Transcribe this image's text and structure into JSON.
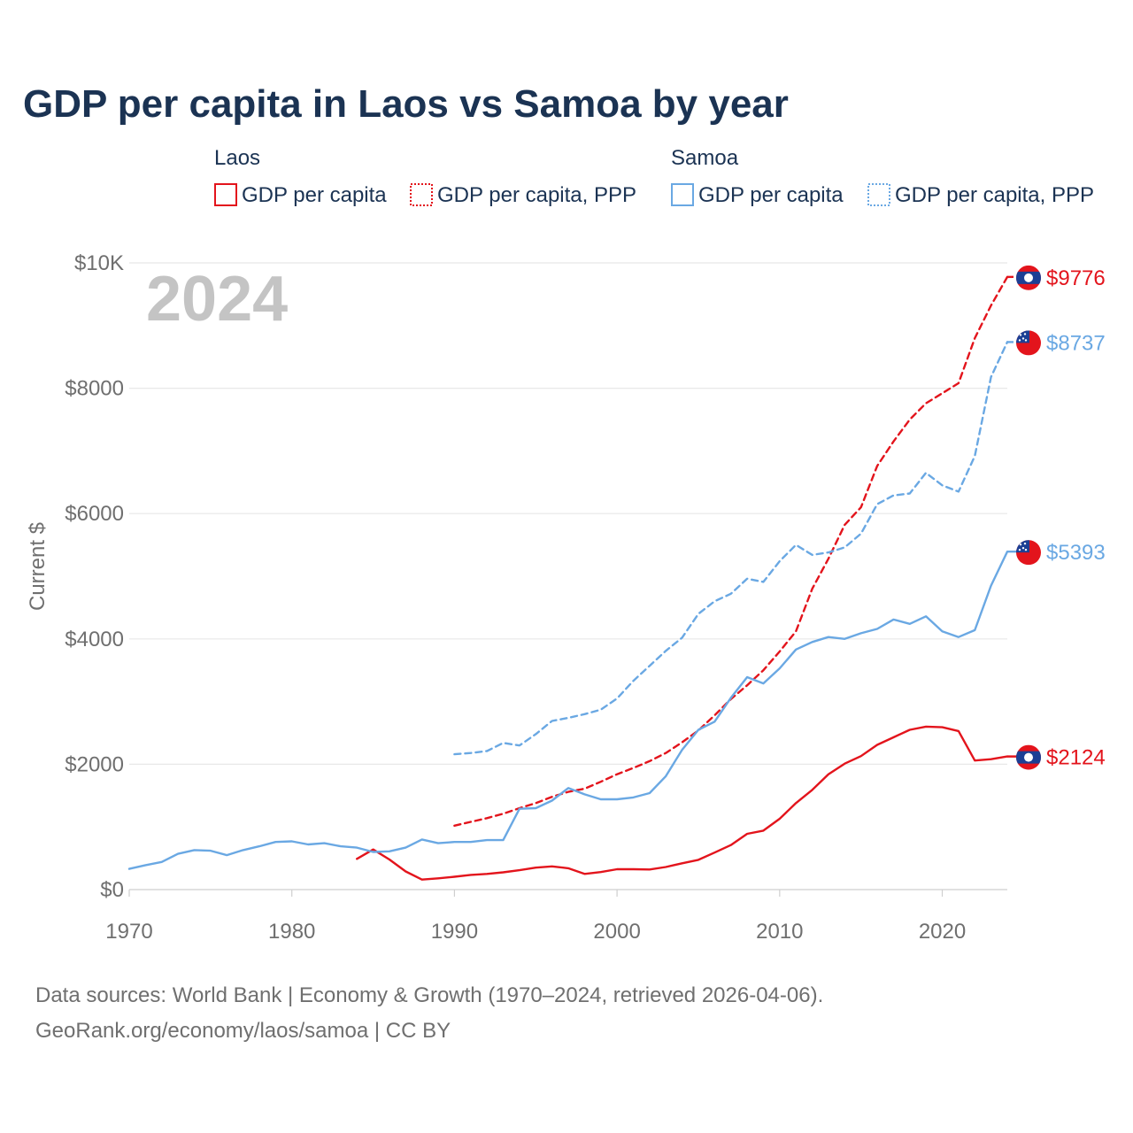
{
  "chart_data": {
    "type": "line",
    "title": "GDP per capita in Laos vs Samoa by year",
    "year_label": "2024",
    "ylabel": "Current $",
    "xlabel": "",
    "xlim": [
      1970,
      2024
    ],
    "ylim": [
      0,
      10000
    ],
    "x_ticks": [
      1970,
      1980,
      1990,
      2000,
      2010,
      2020
    ],
    "y_ticks": [
      {
        "value": 0,
        "label": "$0"
      },
      {
        "value": 2000,
        "label": "$2000"
      },
      {
        "value": 4000,
        "label": "$4000"
      },
      {
        "value": 6000,
        "label": "$6000"
      },
      {
        "value": 8000,
        "label": "$8000"
      },
      {
        "value": 10000,
        "label": "$10K"
      }
    ],
    "grid": true,
    "legend": {
      "placement": "top",
      "groups": [
        {
          "name": "Laos",
          "entries": [
            "GDP per capita",
            "GDP per capita, PPP"
          ]
        },
        {
          "name": "Samoa",
          "entries": [
            "GDP per capita",
            "GDP per capita, PPP"
          ]
        }
      ]
    },
    "colors": {
      "laos": "#e3141c",
      "samoa": "#6aa8e3"
    },
    "series": [
      {
        "name": "Laos GDP per capita",
        "country": "laos",
        "dash": "solid",
        "end_label": "$2124",
        "x": [
          1984,
          1985,
          1986,
          1987,
          1988,
          1989,
          1990,
          1991,
          1992,
          1993,
          1994,
          1995,
          1996,
          1997,
          1998,
          1999,
          2000,
          2001,
          2002,
          2003,
          2004,
          2005,
          2006,
          2007,
          2008,
          2009,
          2010,
          2011,
          2012,
          2013,
          2014,
          2015,
          2016,
          2017,
          2018,
          2019,
          2020,
          2021,
          2022,
          2023,
          2024
        ],
        "values": [
          490,
          640,
          480,
          290,
          160,
          180,
          205,
          235,
          250,
          275,
          310,
          350,
          370,
          340,
          250,
          280,
          325,
          325,
          320,
          360,
          420,
          475,
          590,
          710,
          890,
          940,
          1130,
          1380,
          1590,
          1840,
          2010,
          2130,
          2310,
          2430,
          2550,
          2600,
          2590,
          2530,
          2060,
          2080,
          2124
        ]
      },
      {
        "name": "Laos GDP per capita, PPP",
        "country": "laos",
        "dash": "dashed",
        "end_label": "$9776",
        "x": [
          1990,
          1991,
          1992,
          1993,
          1994,
          1995,
          1996,
          1997,
          1998,
          1999,
          2000,
          2001,
          2002,
          2003,
          2004,
          2005,
          2006,
          2007,
          2008,
          2009,
          2010,
          2011,
          2012,
          2013,
          2014,
          2015,
          2016,
          2017,
          2018,
          2019,
          2020,
          2021,
          2022,
          2023,
          2024
        ],
        "values": [
          1020,
          1080,
          1140,
          1210,
          1300,
          1380,
          1480,
          1560,
          1610,
          1720,
          1840,
          1940,
          2050,
          2180,
          2350,
          2540,
          2780,
          3040,
          3260,
          3500,
          3800,
          4120,
          4800,
          5280,
          5820,
          6100,
          6760,
          7150,
          7500,
          7760,
          7920,
          8080,
          8800,
          9320,
          9776
        ]
      },
      {
        "name": "Samoa GDP per capita",
        "country": "samoa",
        "dash": "solid",
        "end_label": "$5393",
        "x": [
          1970,
          1971,
          1972,
          1973,
          1974,
          1975,
          1976,
          1977,
          1978,
          1979,
          1980,
          1981,
          1982,
          1983,
          1984,
          1985,
          1986,
          1987,
          1988,
          1989,
          1990,
          1991,
          1992,
          1993,
          1994,
          1995,
          1996,
          1997,
          1998,
          1999,
          2000,
          2001,
          2002,
          2003,
          2004,
          2005,
          2006,
          2007,
          2008,
          2009,
          2010,
          2011,
          2012,
          2013,
          2014,
          2015,
          2016,
          2017,
          2018,
          2019,
          2020,
          2021,
          2022,
          2023,
          2024
        ],
        "values": [
          330,
          390,
          440,
          570,
          630,
          620,
          550,
          630,
          690,
          760,
          770,
          720,
          740,
          690,
          670,
          600,
          610,
          670,
          800,
          740,
          760,
          760,
          790,
          790,
          1290,
          1300,
          1420,
          1620,
          1520,
          1440,
          1440,
          1470,
          1540,
          1810,
          2230,
          2550,
          2680,
          3060,
          3390,
          3290,
          3530,
          3830,
          3950,
          4030,
          4000,
          4090,
          4160,
          4310,
          4240,
          4360,
          4120,
          4030,
          4140,
          4850,
          5393
        ]
      },
      {
        "name": "Samoa GDP per capita, PPP",
        "country": "samoa",
        "dash": "dashed",
        "end_label": "$8737",
        "x": [
          1990,
          1991,
          1992,
          1993,
          1994,
          1995,
          1996,
          1997,
          1998,
          1999,
          2000,
          2001,
          2002,
          2003,
          2004,
          2005,
          2006,
          2007,
          2008,
          2009,
          2010,
          2011,
          2012,
          2013,
          2014,
          2015,
          2016,
          2017,
          2018,
          2019,
          2020,
          2021,
          2022,
          2023,
          2024
        ],
        "values": [
          2160,
          2180,
          2210,
          2340,
          2300,
          2480,
          2690,
          2740,
          2800,
          2870,
          3050,
          3330,
          3570,
          3810,
          4020,
          4400,
          4600,
          4720,
          4960,
          4910,
          5240,
          5500,
          5340,
          5380,
          5460,
          5680,
          6150,
          6290,
          6320,
          6650,
          6450,
          6350,
          6920,
          8180,
          8737
        ]
      }
    ],
    "source_lines": [
      "Data sources: World Bank | Economy & Growth (1970–2024, retrieved 2026-04-06).",
      "GeoRank.org/economy/laos/samoa | CC BY"
    ]
  }
}
